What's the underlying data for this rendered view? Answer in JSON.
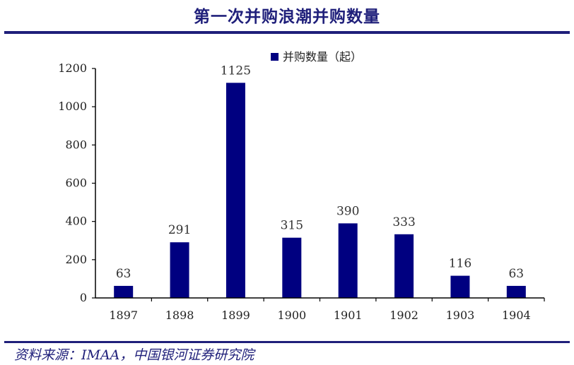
{
  "title": "第一次并购浪潮并购数量",
  "source": "资料来源：IMAA，中国银河证券研究院",
  "chart_data": {
    "type": "bar",
    "categories": [
      "1897",
      "1898",
      "1899",
      "1900",
      "1901",
      "1902",
      "1903",
      "1904"
    ],
    "series": [
      {
        "name": "并购数量（起）",
        "values": [
          63,
          291,
          1125,
          315,
          390,
          333,
          116,
          63
        ]
      }
    ],
    "ylim": [
      0,
      1200
    ],
    "yticks": [
      0,
      200,
      400,
      600,
      800,
      1000,
      1200
    ],
    "bar_color": "#000080",
    "grid": false,
    "legend_position": "top-center",
    "data_labels": true
  }
}
